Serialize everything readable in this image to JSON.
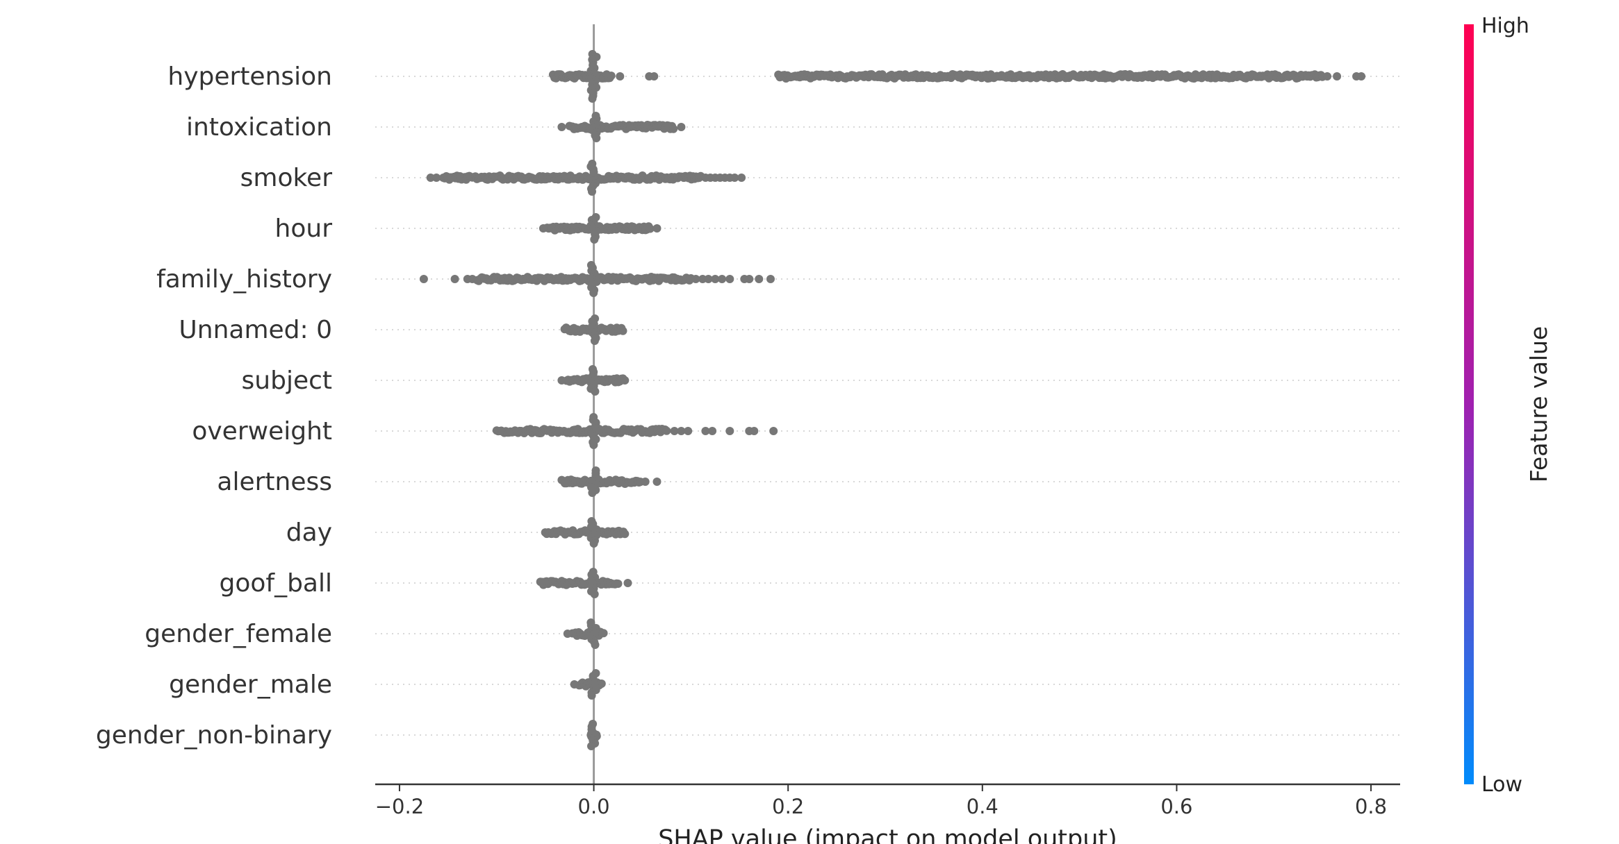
{
  "chart_data": {
    "type": "scatter",
    "subtype": "shap-beeswarm-summary",
    "xlabel": "SHAP value (impact on model output)",
    "xlim": [
      -0.225,
      0.83
    ],
    "xticks": [
      -0.2,
      0.0,
      0.2,
      0.4,
      0.6,
      0.8
    ],
    "xtick_labels": [
      "−0.2",
      "0.0",
      "0.2",
      "0.4",
      "0.6",
      "0.8"
    ],
    "zero_line": 0.0,
    "grid": "horizontal dotted per feature",
    "point_color": "#777777",
    "colorbar": {
      "label": "Feature value",
      "high_label": "High",
      "low_label": "Low",
      "color_high": "#ff0051",
      "color_low": "#008bfb",
      "placement": "right"
    },
    "features": [
      {
        "name": "hypertension",
        "min": -0.042,
        "max": 0.79,
        "dense": [
          [
            -0.042,
            0.018
          ],
          [
            0.19,
            0.75
          ]
        ],
        "outliers": [
          0.027,
          0.057,
          0.062,
          0.255,
          0.27,
          0.36,
          0.375,
          0.39,
          0.41,
          0.42,
          0.445,
          0.45,
          0.47,
          0.48,
          0.5,
          0.515,
          0.525,
          0.55,
          0.56,
          0.575,
          0.62,
          0.64,
          0.755,
          0.765,
          0.785,
          0.79
        ]
      },
      {
        "name": "intoxication",
        "min": -0.033,
        "max": 0.09,
        "dense": [
          [
            -0.025,
            0.082
          ]
        ],
        "outliers": [
          -0.033,
          0.09
        ]
      },
      {
        "name": "smoker",
        "min": -0.168,
        "max": 0.152,
        "dense": [
          [
            -0.155,
            0.11
          ]
        ],
        "outliers": [
          -0.168,
          -0.162,
          0.115,
          0.12,
          0.125,
          0.13,
          0.135,
          0.14,
          0.145,
          0.152
        ]
      },
      {
        "name": "hour",
        "min": -0.052,
        "max": 0.065,
        "dense": [
          [
            -0.048,
            0.058
          ]
        ],
        "outliers": [
          -0.052,
          0.065
        ]
      },
      {
        "name": "family_history",
        "min": -0.175,
        "max": 0.182,
        "dense": [
          [
            -0.12,
            0.1
          ]
        ],
        "outliers": [
          -0.175,
          -0.143,
          -0.13,
          -0.125,
          0.105,
          0.112,
          0.118,
          0.125,
          0.132,
          0.14,
          0.155,
          0.16,
          0.17,
          0.182
        ]
      },
      {
        "name": "Unnamed: 0",
        "min": -0.03,
        "max": 0.03,
        "dense": [
          [
            -0.03,
            0.03
          ]
        ],
        "outliers": []
      },
      {
        "name": "subject",
        "min": -0.033,
        "max": 0.032,
        "dense": [
          [
            -0.028,
            0.03
          ]
        ],
        "outliers": [
          -0.033,
          0.032
        ]
      },
      {
        "name": "overweight",
        "min": -0.1,
        "max": 0.185,
        "dense": [
          [
            -0.1,
            0.075
          ]
        ],
        "outliers": [
          0.083,
          0.09,
          0.097,
          0.115,
          0.122,
          0.14,
          0.16,
          0.165,
          0.185
        ]
      },
      {
        "name": "alertness",
        "min": -0.035,
        "max": 0.065,
        "dense": [
          [
            -0.033,
            0.048
          ]
        ],
        "outliers": [
          0.053,
          0.065
        ]
      },
      {
        "name": "day",
        "min": -0.05,
        "max": 0.032,
        "dense": [
          [
            -0.05,
            0.032
          ]
        ],
        "outliers": []
      },
      {
        "name": "goof_ball",
        "min": -0.055,
        "max": 0.035,
        "dense": [
          [
            -0.055,
            0.025
          ]
        ],
        "outliers": [
          0.035
        ]
      },
      {
        "name": "gender_female",
        "min": -0.027,
        "max": 0.01,
        "dense": [
          [
            -0.022,
            0.01
          ]
        ],
        "outliers": [
          -0.027
        ]
      },
      {
        "name": "gender_male",
        "min": -0.02,
        "max": 0.008,
        "dense": [
          [
            -0.015,
            0.008
          ]
        ],
        "outliers": [
          -0.02
        ]
      },
      {
        "name": "gender_non-binary",
        "min": -0.003,
        "max": 0.003,
        "dense": [
          [
            -0.003,
            0.003
          ]
        ],
        "outliers": []
      }
    ]
  }
}
